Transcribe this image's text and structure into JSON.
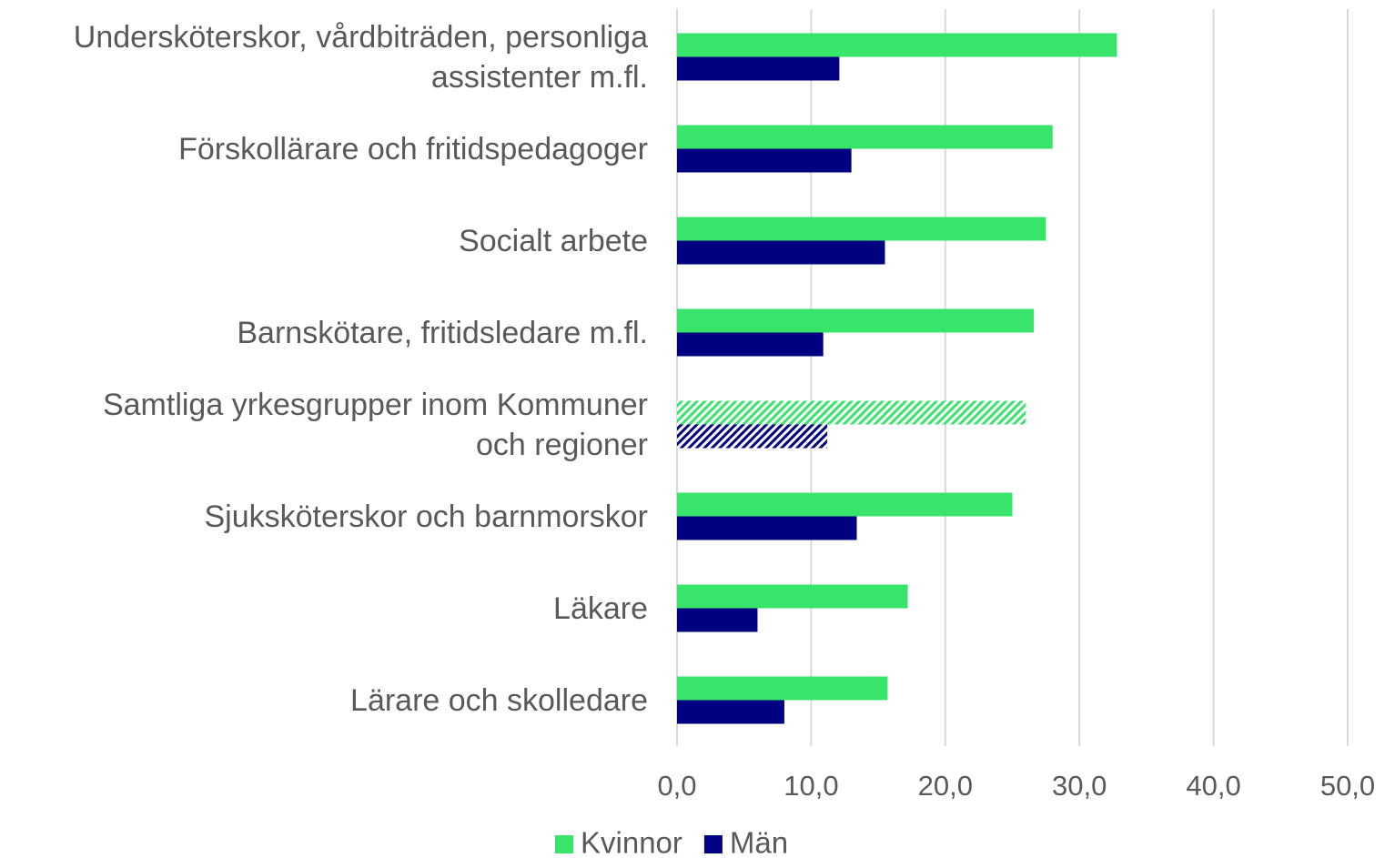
{
  "chart_data": {
    "type": "hbar",
    "categories": [
      "Undersköterskor, vårdbiträden, personliga\nassistenter m.fl.",
      "Förskollärare och fritidspedagoger",
      "Socialt arbete",
      "Barnskötare, fritidsledare m.fl.",
      "Samtliga yrkesgrupper inom Kommuner\noch regioner",
      "Sjuksköterskor och barnmorskor",
      "Läkare",
      "Lärare och skolledare"
    ],
    "series": [
      {
        "name": "Kvinnor",
        "color": "#39e46b",
        "values": [
          32.8,
          28.0,
          27.5,
          26.6,
          26.0,
          25.0,
          17.2,
          15.7
        ]
      },
      {
        "name": "Män",
        "color": "#000080",
        "values": [
          12.1,
          13.0,
          15.5,
          10.9,
          11.2,
          13.4,
          6.0,
          8.0
        ]
      }
    ],
    "hatched_category_index": 4,
    "xlim": [
      0,
      50
    ],
    "xticks": [
      {
        "value": 0,
        "label": "0,0"
      },
      {
        "value": 10,
        "label": "10,0"
      },
      {
        "value": 20,
        "label": "20,0"
      },
      {
        "value": 30,
        "label": "30,0"
      },
      {
        "value": 40,
        "label": "40,0"
      },
      {
        "value": 50,
        "label": "50,0"
      }
    ],
    "grid": true,
    "legend": "bottom"
  }
}
